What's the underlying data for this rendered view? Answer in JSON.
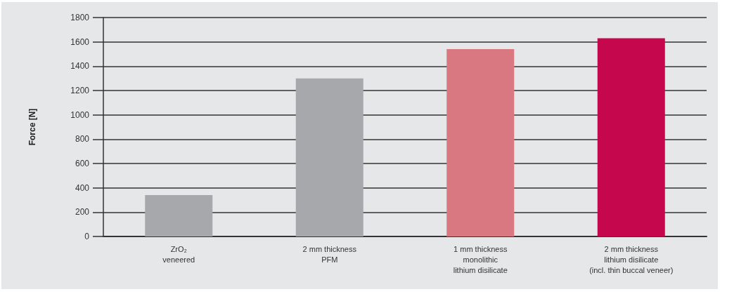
{
  "chart_data": {
    "type": "bar",
    "ylabel": "Force [N]",
    "categories": [
      "ZrO₂\nveneered",
      "2 mm thickness\nPFM",
      "1 mm thickness\nmonolithic\nlithium disilicate",
      "2 mm thickness\nlithium disilicate\n(incl. thin buccal veneer)"
    ],
    "values": [
      340,
      1300,
      1540,
      1630
    ],
    "colors": [
      "#a7a8ab",
      "#a7a8ab",
      "#da7882",
      "#c5084d"
    ],
    "ylim": [
      0,
      1800
    ],
    "yticks": [
      0,
      200,
      400,
      600,
      800,
      1000,
      1200,
      1400,
      1600,
      1800
    ],
    "grid": "y"
  }
}
